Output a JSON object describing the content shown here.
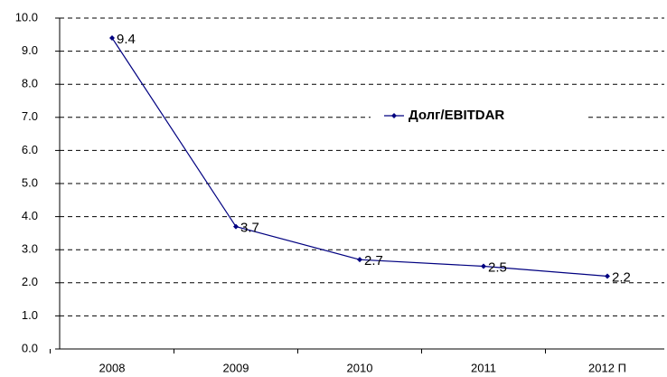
{
  "chart_data": {
    "type": "line",
    "categories": [
      "2008",
      "2009",
      "2010",
      "2011",
      "2012 П"
    ],
    "series": [
      {
        "name": "Долг/EBITDAR",
        "color": "#000080",
        "values": [
          9.4,
          3.7,
          2.7,
          2.5,
          2.2
        ]
      }
    ],
    "ylim": [
      0,
      10
    ],
    "yticks": [
      {
        "value": 0,
        "label": "0.0"
      },
      {
        "value": 1,
        "label": "1.0"
      },
      {
        "value": 2,
        "label": "2.0"
      },
      {
        "value": 3,
        "label": "3.0"
      },
      {
        "value": 4,
        "label": "4.0"
      },
      {
        "value": 5,
        "label": "5.0"
      },
      {
        "value": 6,
        "label": "6.0"
      },
      {
        "value": 7,
        "label": "7.0"
      },
      {
        "value": 8,
        "label": "8.0"
      },
      {
        "value": 9,
        "label": "9.0"
      },
      {
        "value": 10,
        "label": "10.0"
      }
    ],
    "grid": true,
    "legend": "center"
  }
}
